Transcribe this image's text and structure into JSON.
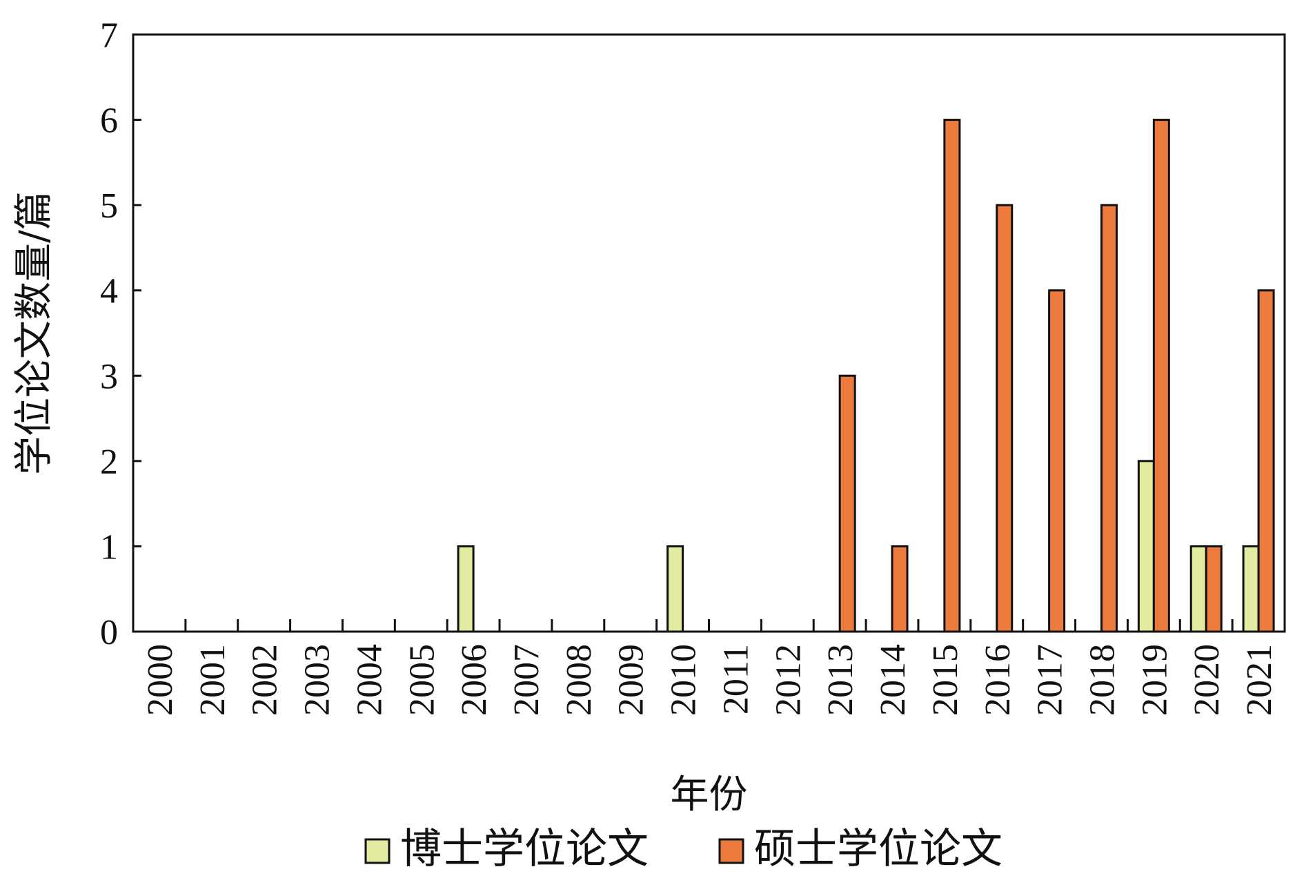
{
  "chart_data": {
    "type": "bar",
    "categories": [
      "2000",
      "2001",
      "2002",
      "2003",
      "2004",
      "2005",
      "2006",
      "2007",
      "2008",
      "2009",
      "2010",
      "2011",
      "2012",
      "2013",
      "2014",
      "2015",
      "2016",
      "2017",
      "2018",
      "2019",
      "2020",
      "2021"
    ],
    "series": [
      {
        "name": "博士学位论文",
        "color": "#e3eba0",
        "values": [
          0,
          0,
          0,
          0,
          0,
          0,
          1,
          0,
          0,
          0,
          1,
          0,
          0,
          0,
          0,
          0,
          0,
          0,
          0,
          2,
          1,
          1
        ]
      },
      {
        "name": "硕士学位论文",
        "color": "#ec7a3c",
        "values": [
          0,
          0,
          0,
          0,
          0,
          0,
          0,
          0,
          0,
          0,
          0,
          0,
          0,
          3,
          1,
          6,
          5,
          4,
          5,
          6,
          1,
          4
        ]
      }
    ],
    "xlabel": "年份",
    "ylabel": "学位论文数量/篇",
    "ylim": [
      0,
      7
    ],
    "yticks": [
      "0",
      "1",
      "2",
      "3",
      "4",
      "5",
      "6",
      "7"
    ],
    "legend_position": "bottom",
    "grid": false
  }
}
